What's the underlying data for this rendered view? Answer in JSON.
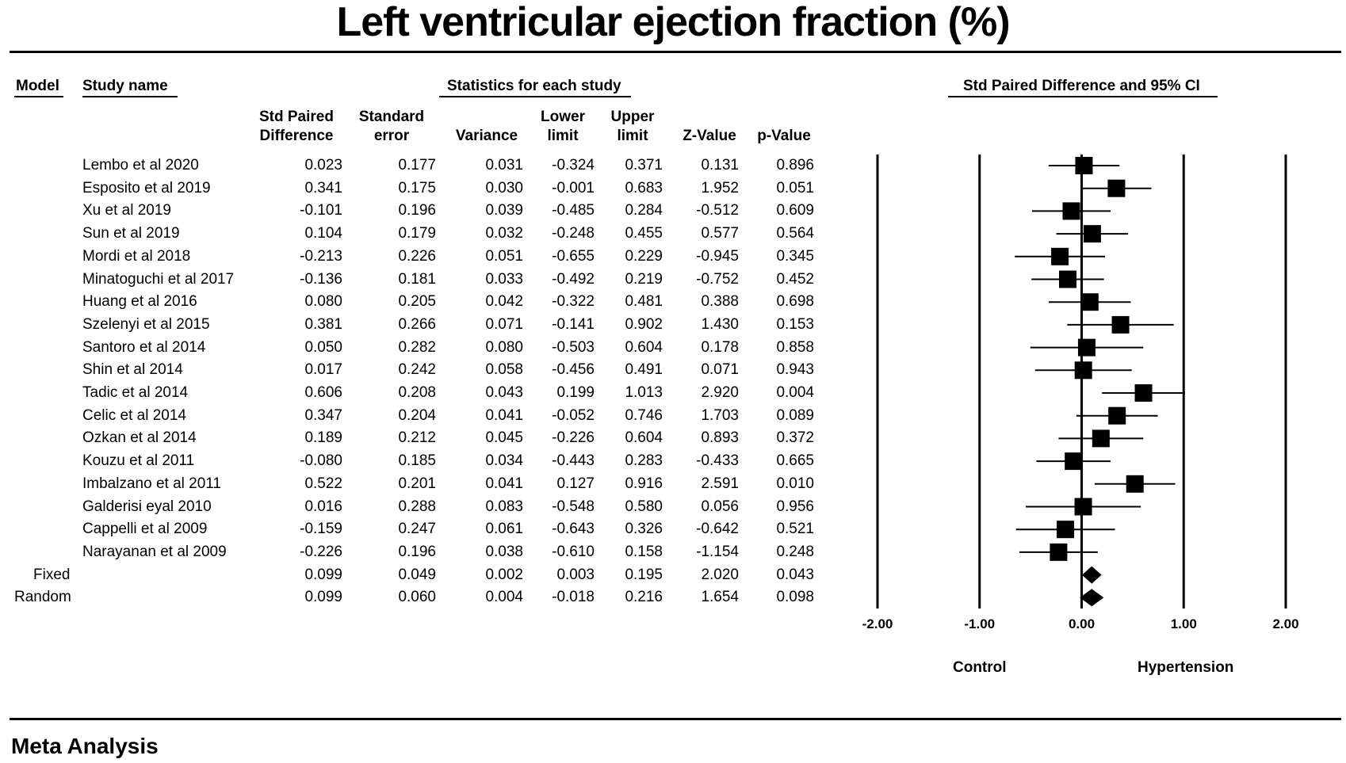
{
  "title": "Left ventricular ejection fraction (%)",
  "headers": {
    "model": "Model",
    "study_name": "Study name",
    "stats_group": "Statistics for each study",
    "plot_group": "Std Paired Difference and 95% CI",
    "std_diff": [
      "Std Paired",
      "Difference"
    ],
    "std_err": [
      "Standard",
      "error"
    ],
    "variance": "Variance",
    "lower": [
      "Lower",
      "limit"
    ],
    "upper": [
      "Upper",
      "limit"
    ],
    "z": "Z-Value",
    "p": "p-Value"
  },
  "axis": {
    "left_label": "Control",
    "right_label": "Hypertension",
    "tick_labels": [
      "-2.00",
      "-1.00",
      "0.00",
      "1.00",
      "2.00"
    ]
  },
  "footer": "Meta Analysis",
  "chart_data": {
    "type": "forest",
    "xlim": [
      -2,
      2
    ],
    "ticks": [
      -2,
      -1,
      0,
      1,
      2
    ],
    "studies": [
      {
        "name": "Lembo et al 2020",
        "d": "0.023",
        "se": "0.177",
        "var": "0.031",
        "lo": "-0.324",
        "hi": "0.371",
        "z": "0.131",
        "p": "0.896"
      },
      {
        "name": "Esposito et al 2019",
        "d": "0.341",
        "se": "0.175",
        "var": "0.030",
        "lo": "-0.001",
        "hi": "0.683",
        "z": "1.952",
        "p": "0.051"
      },
      {
        "name": "Xu et al 2019",
        "d": "-0.101",
        "se": "0.196",
        "var": "0.039",
        "lo": "-0.485",
        "hi": "0.284",
        "z": "-0.512",
        "p": "0.609"
      },
      {
        "name": "Sun et al 2019",
        "d": "0.104",
        "se": "0.179",
        "var": "0.032",
        "lo": "-0.248",
        "hi": "0.455",
        "z": "0.577",
        "p": "0.564"
      },
      {
        "name": "Mordi et al 2018",
        "d": "-0.213",
        "se": "0.226",
        "var": "0.051",
        "lo": "-0.655",
        "hi": "0.229",
        "z": "-0.945",
        "p": "0.345"
      },
      {
        "name": "Minatoguchi et al 2017",
        "d": "-0.136",
        "se": "0.181",
        "var": "0.033",
        "lo": "-0.492",
        "hi": "0.219",
        "z": "-0.752",
        "p": "0.452"
      },
      {
        "name": "Huang et al 2016",
        "d": "0.080",
        "se": "0.205",
        "var": "0.042",
        "lo": "-0.322",
        "hi": "0.481",
        "z": "0.388",
        "p": "0.698"
      },
      {
        "name": "Szelenyi et al 2015",
        "d": "0.381",
        "se": "0.266",
        "var": "0.071",
        "lo": "-0.141",
        "hi": "0.902",
        "z": "1.430",
        "p": "0.153"
      },
      {
        "name": "Santoro et al 2014",
        "d": "0.050",
        "se": "0.282",
        "var": "0.080",
        "lo": "-0.503",
        "hi": "0.604",
        "z": "0.178",
        "p": "0.858"
      },
      {
        "name": "Shin et al 2014",
        "d": "0.017",
        "se": "0.242",
        "var": "0.058",
        "lo": "-0.456",
        "hi": "0.491",
        "z": "0.071",
        "p": "0.943"
      },
      {
        "name": "Tadic et al 2014",
        "d": "0.606",
        "se": "0.208",
        "var": "0.043",
        "lo": "0.199",
        "hi": "1.013",
        "z": "2.920",
        "p": "0.004"
      },
      {
        "name": "Celic et al 2014",
        "d": "0.347",
        "se": "0.204",
        "var": "0.041",
        "lo": "-0.052",
        "hi": "0.746",
        "z": "1.703",
        "p": "0.089"
      },
      {
        "name": "Ozkan et al 2014",
        "d": "0.189",
        "se": "0.212",
        "var": "0.045",
        "lo": "-0.226",
        "hi": "0.604",
        "z": "0.893",
        "p": "0.372"
      },
      {
        "name": "Kouzu et al 2011",
        "d": "-0.080",
        "se": "0.185",
        "var": "0.034",
        "lo": "-0.443",
        "hi": "0.283",
        "z": "-0.433",
        "p": "0.665"
      },
      {
        "name": "Imbalzano et al 2011",
        "d": "0.522",
        "se": "0.201",
        "var": "0.041",
        "lo": "0.127",
        "hi": "0.916",
        "z": "2.591",
        "p": "0.010"
      },
      {
        "name": "Galderisi eyal 2010",
        "d": "0.016",
        "se": "0.288",
        "var": "0.083",
        "lo": "-0.548",
        "hi": "0.580",
        "z": "0.056",
        "p": "0.956"
      },
      {
        "name": "Cappelli et al 2009",
        "d": "-0.159",
        "se": "0.247",
        "var": "0.061",
        "lo": "-0.643",
        "hi": "0.326",
        "z": "-0.642",
        "p": "0.521"
      },
      {
        "name": "Narayanan et al 2009",
        "d": "-0.226",
        "se": "0.196",
        "var": "0.038",
        "lo": "-0.610",
        "hi": "0.158",
        "z": "-1.154",
        "p": "0.248"
      }
    ],
    "summary": [
      {
        "model": "Fixed",
        "d": "0.099",
        "se": "0.049",
        "var": "0.002",
        "lo": "0.003",
        "hi": "0.195",
        "z": "2.020",
        "p": "0.043"
      },
      {
        "model": "Random",
        "d": "0.099",
        "se": "0.060",
        "var": "0.004",
        "lo": "-0.018",
        "hi": "0.216",
        "z": "1.654",
        "p": "0.098"
      }
    ]
  }
}
